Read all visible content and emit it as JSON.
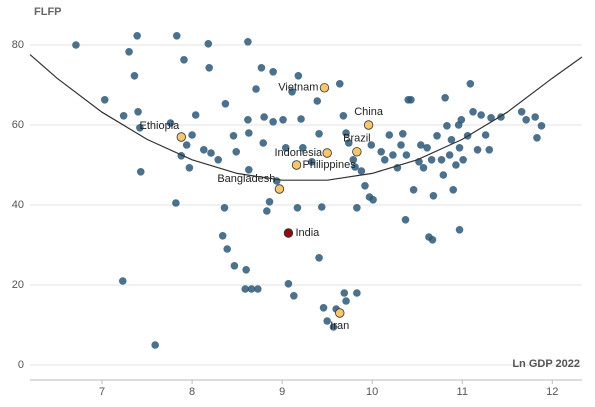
{
  "chart_data": {
    "type": "scatter",
    "y_label": "FLFP",
    "x_label": "Ln GDP 2022",
    "xlim": [
      6.2,
      12.33
    ],
    "ylim": [
      -3.75,
      89.25
    ],
    "xticks": [
      7,
      8,
      9,
      10,
      11,
      12
    ],
    "yticks": [
      0,
      20,
      40,
      60,
      80
    ],
    "grid": true,
    "color": "#2d5878",
    "points": {
      "x": [
        6.71,
        7.03,
        7.24,
        7.3,
        7.39,
        7.36,
        7.4,
        7.42,
        7.43,
        7.23,
        7.59,
        7.76,
        7.83,
        7.88,
        7.91,
        7.94,
        7.97,
        7.82,
        8,
        8.04,
        8.18,
        8.19,
        8.13,
        8.21,
        8.29,
        8.37,
        8.46,
        8.49,
        8.36,
        8.34,
        8.39,
        8.47,
        8.6,
        8.59,
        8.66,
        8.73,
        8.62,
        8.62,
        8.63,
        8.63,
        8.71,
        8.77,
        8.8,
        8.79,
        8.86,
        8.9,
        8.9,
        8.94,
        8.83,
        9.01,
        9.04,
        9.07,
        9.11,
        9.13,
        9.17,
        9.18,
        9.21,
        9.23,
        9.33,
        9.39,
        9.41,
        9.44,
        9.41,
        9.46,
        9.5,
        9.57,
        9.6,
        9.69,
        9.71,
        9.83,
        9.64,
        9.68,
        9.71,
        9.74,
        9.79,
        9.81,
        9.83,
        9.88,
        9.92,
        9.97,
        10.01,
        9.99,
        10.1,
        10.14,
        10.19,
        10.23,
        10.28,
        10.32,
        10.34,
        10.38,
        10.4,
        10.43,
        10.37,
        10.46,
        10.52,
        10.54,
        10.57,
        10.61,
        10.63,
        10.67,
        10.66,
        10.68,
        10.72,
        10.77,
        10.79,
        10.81,
        10.83,
        10.86,
        10.88,
        10.9,
        10.93,
        10.96,
        10.97,
        10.97,
        10.99,
        11.01,
        11.06,
        11.09,
        11.12,
        11.17,
        11.21,
        11.26,
        11.3,
        11.32,
        11.43,
        11.66,
        11.71,
        11.81,
        11.83,
        11.88
      ],
      "y": [
        80,
        66.3,
        62.3,
        78.3,
        82.3,
        72.3,
        63.3,
        59.3,
        48.3,
        21,
        5,
        60.5,
        82.3,
        52.3,
        76.3,
        55,
        49.3,
        40.5,
        57.5,
        62.5,
        80.3,
        74.3,
        53.8,
        53,
        51.3,
        65.3,
        57.3,
        53.3,
        39.3,
        32.3,
        29,
        24.8,
        23.8,
        19,
        19,
        19,
        80.8,
        61.3,
        48.8,
        58,
        69,
        74.3,
        62,
        55.5,
        40.8,
        73.3,
        60.8,
        46,
        38.5,
        61.3,
        54.3,
        20.3,
        68.3,
        17.3,
        39.3,
        72.3,
        61.5,
        54.3,
        50.8,
        66,
        57.8,
        39.5,
        26.8,
        14.3,
        11,
        9.5,
        14,
        18,
        16,
        18,
        70.3,
        62.3,
        58,
        55.5,
        51.3,
        49.5,
        39.3,
        48.5,
        44.8,
        42,
        41.3,
        55,
        53.3,
        51.3,
        57.5,
        52.5,
        49.3,
        55,
        57.8,
        52.5,
        66.3,
        66.3,
        36.3,
        43.8,
        50.8,
        55,
        49.3,
        54.3,
        32,
        31.3,
        51.3,
        42.3,
        57.3,
        51.3,
        47.5,
        66.8,
        59.8,
        52.5,
        56.3,
        43.8,
        50,
        60,
        54.3,
        33.8,
        61.3,
        51.3,
        57.3,
        70.3,
        63.3,
        53.8,
        62.5,
        57.5,
        53.8,
        61.8,
        62,
        63.3,
        61.3,
        62,
        56.8,
        59.8
      ]
    },
    "highlights": [
      {
        "label": "Vietnam",
        "x": 9.47,
        "y": 69.3,
        "color": "#f6c66e"
      },
      {
        "label": "China",
        "x": 9.96,
        "y": 60,
        "color": "#f6c66e"
      },
      {
        "label": "Ethiopia",
        "x": 7.88,
        "y": 57,
        "color": "#f6c66e"
      },
      {
        "label": "Brazil",
        "x": 9.83,
        "y": 53.3,
        "color": "#f6c66e"
      },
      {
        "label": "Indonesia",
        "x": 9.5,
        "y": 53,
        "color": "#f6c66e"
      },
      {
        "label": "Philippines",
        "x": 9.16,
        "y": 50,
        "color": "#f6c66e"
      },
      {
        "label": "Bangladesh",
        "x": 8.97,
        "y": 44,
        "color": "#f6c66e"
      },
      {
        "label": "India",
        "x": 9.07,
        "y": 33,
        "color": "#8b0d0d"
      },
      {
        "label": "Iran",
        "x": 9.64,
        "y": 13,
        "color": "#f6c66e"
      }
    ],
    "trend": {
      "color": "#333333",
      "x": [
        6.2,
        6.5,
        7,
        7.5,
        8,
        8.5,
        9,
        9.5,
        10,
        10.5,
        11,
        11.5,
        12,
        12.33
      ],
      "values": [
        77.6,
        71.7,
        63.2,
        56.4,
        51.3,
        47.9,
        46.2,
        46.2,
        47.9,
        51.3,
        56.4,
        63.2,
        71.7,
        77
      ]
    }
  }
}
